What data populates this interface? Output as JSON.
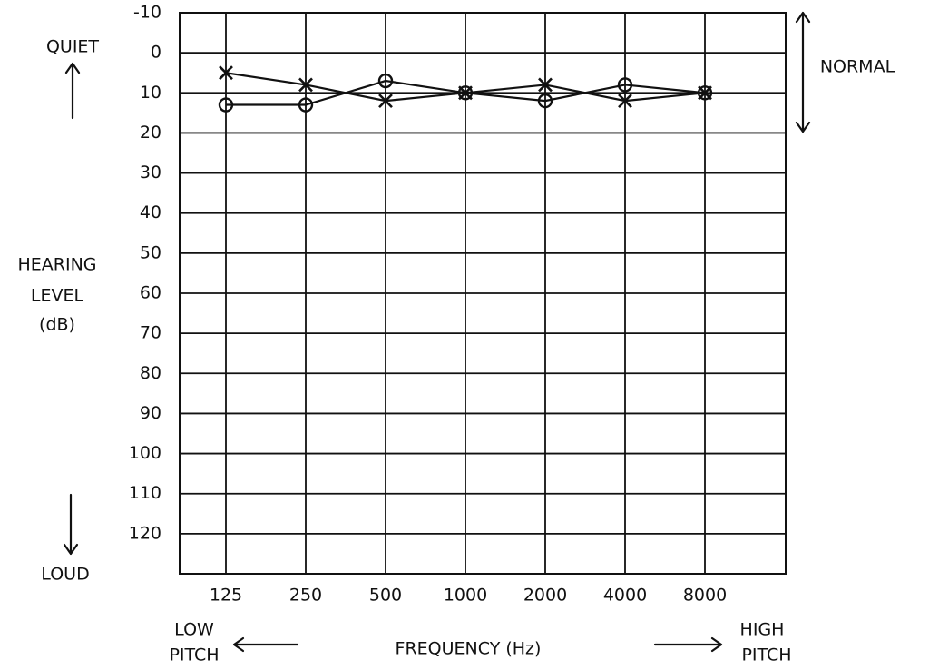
{
  "chart_data": {
    "type": "audiogram",
    "y_label_lines": [
      "HEARING",
      "LEVEL",
      "(dB)"
    ],
    "x_label": "FREQUENCY (Hz)",
    "annotations": {
      "top": "QUIET",
      "bottom": "LOUD",
      "normal": "NORMAL",
      "low": [
        "LOW",
        "PITCH"
      ],
      "high": [
        "HIGH",
        "PITCH"
      ]
    },
    "categories": [
      "125",
      "250",
      "500",
      "1000",
      "2000",
      "4000",
      "8000"
    ],
    "series": [
      {
        "marker": "x",
        "color": "#111111",
        "values": [
          5,
          8,
          12,
          10,
          8,
          12,
          10
        ]
      },
      {
        "marker": "o",
        "color": "#111111",
        "values": [
          13,
          13,
          7,
          10,
          12,
          8,
          10
        ]
      }
    ],
    "ylim": [
      -10,
      130
    ],
    "yticks": [
      -10,
      0,
      10,
      20,
      30,
      40,
      50,
      60,
      70,
      80,
      90,
      100,
      110,
      120
    ],
    "inverted_y": true,
    "grid": true
  }
}
